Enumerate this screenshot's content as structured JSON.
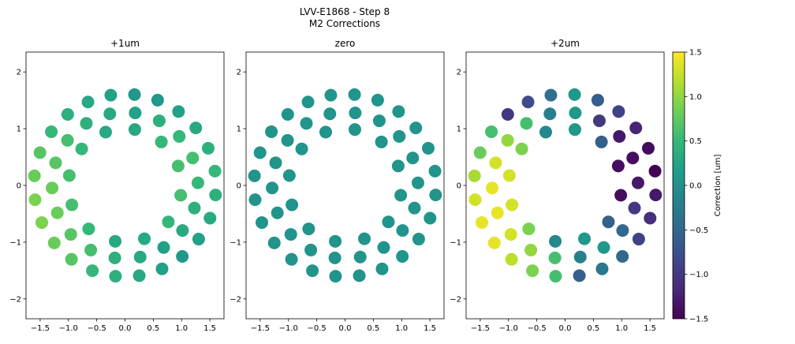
{
  "figure": {
    "title_line1": "LVV-E1868 - Step 8",
    "title_line2": "M2 Corrections"
  },
  "colorbar": {
    "label": "Correction [um]",
    "ticks": [
      1.5,
      1.0,
      0.5,
      0.0,
      -0.5,
      -1.0,
      -1.5
    ],
    "tick_labels": [
      "1.5",
      "1.0",
      "0.5",
      "0.0",
      "−0.5",
      "−1.0",
      "−1.5"
    ],
    "vmin": -1.5,
    "vmax": 1.5,
    "colormap": [
      "#440154",
      "#482878",
      "#3e4989",
      "#31688e",
      "#26828e",
      "#1f9e89",
      "#35b779",
      "#6ece58",
      "#b5de2b",
      "#fde725"
    ]
  },
  "chart_data": [
    {
      "type": "scatter",
      "title": "+1um",
      "xlim": [
        -1.75,
        1.75
      ],
      "ylim": [
        -2.35,
        2.35
      ],
      "xticks": [
        -1.5,
        -1.0,
        -0.5,
        0.0,
        0.5,
        1.0,
        1.5
      ],
      "xtick_labels": [
        "−1.5",
        "−1.0",
        "−0.5",
        "0.0",
        "0.5",
        "1.0",
        "1.5"
      ],
      "yticks": [
        2,
        1,
        0,
        -1,
        -2
      ],
      "ytick_labels": [
        "2",
        "1",
        "0",
        "−1",
        "−2"
      ],
      "rings": [
        {
          "radius": 1.0,
          "count": 12,
          "start_angle_deg": 80,
          "values": [
            0.3,
            0.3,
            0.5,
            0.6,
            0.6,
            0.5,
            0.3,
            0.3,
            0.5,
            0.6,
            0.6,
            0.5
          ]
        },
        {
          "radius": 1.29,
          "count": 18,
          "start_angle_deg": 82,
          "values": [
            0.2,
            0.3,
            0.4,
            0.6,
            0.7,
            0.8,
            0.8,
            0.7,
            0.6,
            0.4,
            0.3,
            0.2,
            0.3,
            0.4,
            0.5,
            0.6,
            0.5,
            0.4
          ]
        },
        {
          "radius": 1.61,
          "count": 24,
          "start_angle_deg": 84,
          "values": [
            0.1,
            0.2,
            0.3,
            0.4,
            0.5,
            0.7,
            0.8,
            0.9,
            0.9,
            0.8,
            0.7,
            0.5,
            0.4,
            0.3,
            0.2,
            0.1,
            0.2,
            0.3,
            0.4,
            0.5,
            0.4,
            0.3,
            0.2,
            0.1
          ]
        }
      ]
    },
    {
      "type": "scatter",
      "title": "zero",
      "xlim": [
        -1.75,
        1.75
      ],
      "ylim": [
        -2.35,
        2.35
      ],
      "xticks": [
        -1.5,
        -1.0,
        -0.5,
        0.0,
        0.5,
        1.0,
        1.5
      ],
      "xtick_labels": [
        "−1.5",
        "−1.0",
        "−0.5",
        "0.0",
        "0.5",
        "1.0",
        "1.5"
      ],
      "yticks": [
        2,
        1,
        0,
        -1,
        -2
      ],
      "ytick_labels": [
        "2",
        "1",
        "0",
        "−1",
        "−2"
      ],
      "rings": [
        {
          "radius": 1.0,
          "count": 12,
          "start_angle_deg": 80,
          "values": [
            0.05,
            0.05,
            0.05,
            0.05,
            0.05,
            0.05,
            0.05,
            0.05,
            0.05,
            0.05,
            0.05,
            0.05
          ]
        },
        {
          "radius": 1.29,
          "count": 18,
          "start_angle_deg": 82,
          "values": [
            0.05,
            0.05,
            0.05,
            0.05,
            0.05,
            0.05,
            0.05,
            0.05,
            0.05,
            0.05,
            0.05,
            0.05,
            0.05,
            0.05,
            0.05,
            0.05,
            0.05,
            0.05
          ]
        },
        {
          "radius": 1.61,
          "count": 24,
          "start_angle_deg": 84,
          "values": [
            0.05,
            0.05,
            0.05,
            0.05,
            0.05,
            0.05,
            0.05,
            0.05,
            0.05,
            0.05,
            0.05,
            0.05,
            0.05,
            0.05,
            0.05,
            0.05,
            0.05,
            0.05,
            0.05,
            0.05,
            0.05,
            0.05,
            0.05,
            0.05
          ]
        }
      ]
    },
    {
      "type": "scatter",
      "title": "+2um",
      "xlim": [
        -1.75,
        1.75
      ],
      "ylim": [
        -2.35,
        2.35
      ],
      "xticks": [
        -1.5,
        -1.0,
        -0.5,
        0.0,
        0.5,
        1.0,
        1.5
      ],
      "xtick_labels": [
        "−1.5",
        "−1.0",
        "−0.5",
        "0.0",
        "0.5",
        "1.0",
        "1.5"
      ],
      "yticks": [
        2,
        1,
        0,
        -1,
        -2
      ],
      "ytick_labels": [
        "2",
        "1",
        "0",
        "−1",
        "−2"
      ],
      "rings": [
        {
          "radius": 1.0,
          "count": 12,
          "start_angle_deg": 80,
          "values": [
            0.1,
            -0.1,
            0.9,
            1.3,
            1.3,
            0.9,
            -0.1,
            0.1,
            -0.6,
            -1.4,
            -1.4,
            -0.6
          ]
        },
        {
          "radius": 1.29,
          "count": 18,
          "start_angle_deg": 82,
          "values": [
            0.1,
            -0.2,
            0.6,
            1.0,
            1.3,
            1.4,
            1.4,
            1.3,
            1.0,
            0.6,
            -0.2,
            0.1,
            -0.5,
            -1.0,
            -1.3,
            -1.4,
            -1.3,
            -1.0
          ]
        },
        {
          "radius": 1.61,
          "count": 24,
          "start_angle_deg": 84,
          "values": [
            0.1,
            -0.4,
            -0.8,
            -1.0,
            0.6,
            0.8,
            1.1,
            1.3,
            1.4,
            1.4,
            1.2,
            0.9,
            0.6,
            -0.6,
            -0.3,
            -0.5,
            -0.9,
            -1.1,
            -1.3,
            -1.5,
            -1.4,
            -1.2,
            -0.9,
            -0.6
          ]
        }
      ]
    }
  ]
}
